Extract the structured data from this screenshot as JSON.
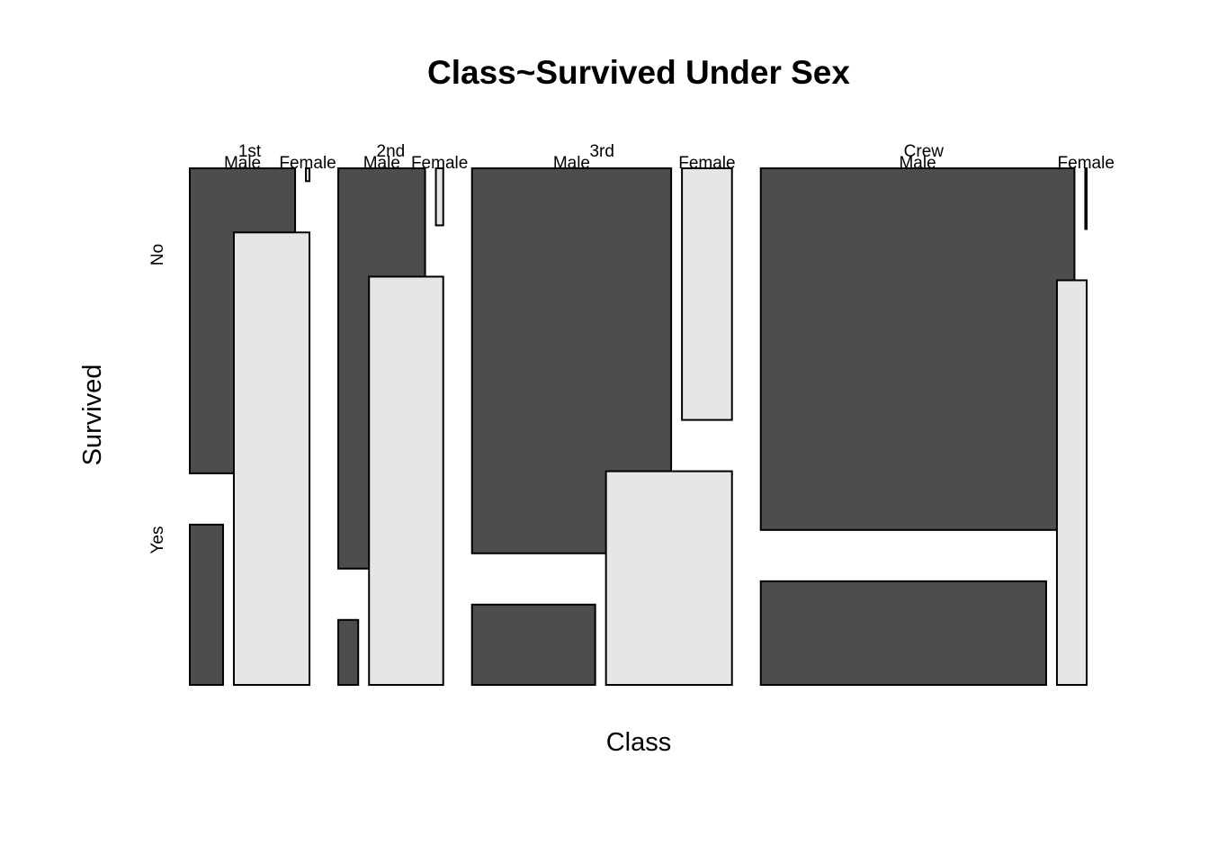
{
  "chart_data": {
    "type": "mosaic",
    "title": "Class~Survived Under Sex",
    "xlabel": "Class",
    "ylabel": "Survived",
    "x_variable": "Class",
    "y_variable": "Survived",
    "split_variable": "Sex",
    "x_categories": [
      "1st",
      "2nd",
      "3rd",
      "Crew"
    ],
    "y_categories": [
      "No",
      "Yes"
    ],
    "sex_categories": [
      "Male",
      "Female"
    ],
    "colors": {
      "Male": "#4d4d4d",
      "Female": "#e6e6e6"
    },
    "counts": [
      {
        "class": "1st",
        "sex": "Male",
        "no": 118,
        "yes": 62
      },
      {
        "class": "1st",
        "sex": "Female",
        "no": 4,
        "yes": 141
      },
      {
        "class": "2nd",
        "sex": "Male",
        "no": 154,
        "yes": 25
      },
      {
        "class": "2nd",
        "sex": "Female",
        "no": 13,
        "yes": 93
      },
      {
        "class": "3rd",
        "sex": "Male",
        "no": 422,
        "yes": 88
      },
      {
        "class": "3rd",
        "sex": "Female",
        "no": 106,
        "yes": 90
      },
      {
        "class": "Crew",
        "sex": "Male",
        "no": 670,
        "yes": 192
      },
      {
        "class": "Crew",
        "sex": "Female",
        "no": 3,
        "yes": 20
      }
    ]
  }
}
